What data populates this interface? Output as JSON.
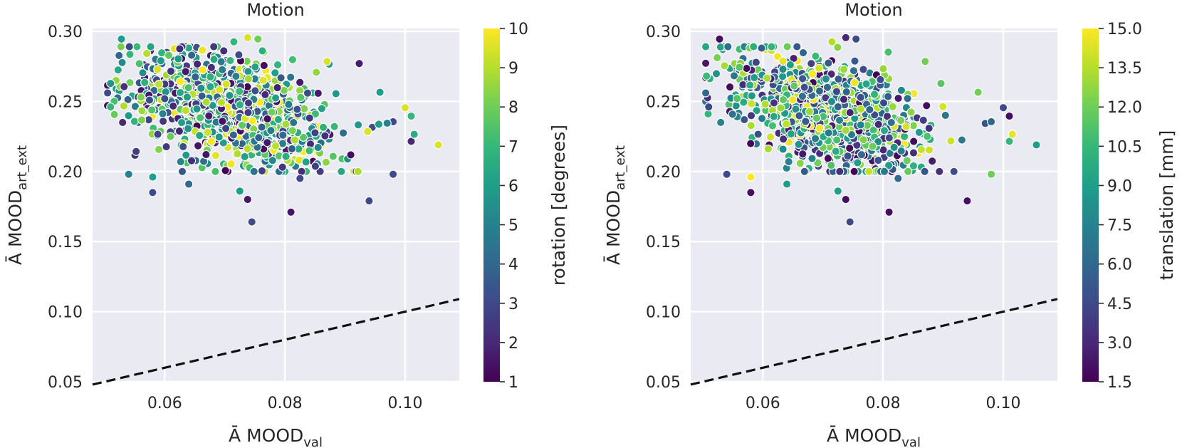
{
  "chart_data": [
    {
      "type": "scatter",
      "title": "Motion",
      "xlabel": {
        "prefix": "Ā MOOD",
        "subscript": "val"
      },
      "ylabel": {
        "prefix": "Ā MOOD",
        "subscript": "art_ext"
      },
      "xlim": [
        0.048,
        0.109
      ],
      "ylim": [
        0.05,
        0.302
      ],
      "xticks": [
        "0.06",
        "0.08",
        "0.10"
      ],
      "yticks": [
        "0.05",
        "0.10",
        "0.15",
        "0.20",
        "0.25",
        "0.30"
      ],
      "grid": true,
      "reference_line": {
        "style": "dashed",
        "color": "#111111",
        "x": [
          0.048,
          0.109
        ],
        "y": [
          0.048,
          0.109
        ]
      },
      "colorbar": {
        "label": "rotation [degrees]",
        "range": [
          1,
          10
        ],
        "ticks": [
          "1",
          "2",
          "3",
          "4",
          "5",
          "6",
          "7",
          "8",
          "9",
          "10"
        ],
        "colormap": "viridis"
      },
      "point_count": 1000,
      "point_distribution": {
        "x_mean": 0.071,
        "x_sd": 0.008,
        "y_mean": 0.243,
        "y_sd": 0.022
      },
      "notable_points": [
        {
          "x": 0.0528,
          "y": 0.2945,
          "c": 6.0
        },
        {
          "x": 0.0755,
          "y": 0.2945,
          "c": 8.0
        },
        {
          "x": 0.0738,
          "y": 0.2955,
          "c": 9.5
        },
        {
          "x": 0.0715,
          "y": 0.2925,
          "c": 7.0
        },
        {
          "x": 0.0625,
          "y": 0.2875,
          "c": 2.0
        },
        {
          "x": 0.087,
          "y": 0.2785,
          "c": 9.5
        },
        {
          "x": 0.0958,
          "y": 0.2565,
          "c": 6.0
        },
        {
          "x": 0.1,
          "y": 0.2455,
          "c": 9.5
        },
        {
          "x": 0.101,
          "y": 0.2395,
          "c": 7.0
        },
        {
          "x": 0.098,
          "y": 0.2355,
          "c": 3.0
        },
        {
          "x": 0.097,
          "y": 0.2345,
          "c": 5.0
        },
        {
          "x": 0.101,
          "y": 0.2215,
          "c": 2.0
        },
        {
          "x": 0.1055,
          "y": 0.219,
          "c": 9.5
        },
        {
          "x": 0.1015,
          "y": 0.2265,
          "c": 6.5
        },
        {
          "x": 0.098,
          "y": 0.198,
          "c": 3.0
        },
        {
          "x": 0.094,
          "y": 0.179,
          "c": 3.0
        },
        {
          "x": 0.081,
          "y": 0.171,
          "c": 1.5
        },
        {
          "x": 0.0745,
          "y": 0.164,
          "c": 3.0
        },
        {
          "x": 0.0738,
          "y": 0.18,
          "c": 1.5
        },
        {
          "x": 0.0725,
          "y": 0.186,
          "c": 6.0
        },
        {
          "x": 0.058,
          "y": 0.185,
          "c": 3.0
        },
        {
          "x": 0.058,
          "y": 0.196,
          "c": 6.0
        },
        {
          "x": 0.054,
          "y": 0.198,
          "c": 5.0
        },
        {
          "x": 0.064,
          "y": 0.191,
          "c": 4.0
        },
        {
          "x": 0.0825,
          "y": 0.195,
          "c": 3.0
        },
        {
          "x": 0.0505,
          "y": 0.256,
          "c": 3.0
        },
        {
          "x": 0.051,
          "y": 0.246,
          "c": 7.0
        },
        {
          "x": 0.053,
          "y": 0.235,
          "c": 2.0
        }
      ]
    },
    {
      "type": "scatter",
      "title": "Motion",
      "xlabel": {
        "prefix": "Ā MOOD",
        "subscript": "val"
      },
      "ylabel": {
        "prefix": "Ā MOOD",
        "subscript": "art_ext"
      },
      "xlim": [
        0.048,
        0.109
      ],
      "ylim": [
        0.05,
        0.302
      ],
      "xticks": [
        "0.06",
        "0.08",
        "0.10"
      ],
      "yticks": [
        "0.05",
        "0.10",
        "0.15",
        "0.20",
        "0.25",
        "0.30"
      ],
      "grid": true,
      "reference_line": {
        "style": "dashed",
        "color": "#111111",
        "x": [
          0.048,
          0.109
        ],
        "y": [
          0.048,
          0.109
        ]
      },
      "colorbar": {
        "label": "translation [mm]",
        "range": [
          1.5,
          15.0
        ],
        "ticks": [
          "1.5",
          "3.0",
          "4.5",
          "6.0",
          "7.5",
          "9.0",
          "10.5",
          "12.0",
          "13.5",
          "15.0"
        ],
        "colormap": "viridis"
      },
      "point_count": 1000,
      "point_distribution": {
        "x_mean": 0.071,
        "x_sd": 0.008,
        "y_mean": 0.243,
        "y_sd": 0.022
      },
      "notable_points": [
        {
          "x": 0.0528,
          "y": 0.2945,
          "c": 2.0
        },
        {
          "x": 0.0755,
          "y": 0.2945,
          "c": 4.5
        },
        {
          "x": 0.0738,
          "y": 0.2955,
          "c": 3.0
        },
        {
          "x": 0.0715,
          "y": 0.2925,
          "c": 13.5
        },
        {
          "x": 0.087,
          "y": 0.2785,
          "c": 12.0
        },
        {
          "x": 0.0958,
          "y": 0.2565,
          "c": 12.0
        },
        {
          "x": 0.1,
          "y": 0.2455,
          "c": 4.5
        },
        {
          "x": 0.101,
          "y": 0.2395,
          "c": 2.0
        },
        {
          "x": 0.098,
          "y": 0.2355,
          "c": 6.0
        },
        {
          "x": 0.101,
          "y": 0.2215,
          "c": 10.5
        },
        {
          "x": 0.1055,
          "y": 0.219,
          "c": 9.0
        },
        {
          "x": 0.1015,
          "y": 0.2265,
          "c": 14.5
        },
        {
          "x": 0.098,
          "y": 0.198,
          "c": 12.0
        },
        {
          "x": 0.094,
          "y": 0.179,
          "c": 2.0
        },
        {
          "x": 0.081,
          "y": 0.171,
          "c": 2.0
        },
        {
          "x": 0.0745,
          "y": 0.164,
          "c": 4.5
        },
        {
          "x": 0.0738,
          "y": 0.18,
          "c": 2.0
        },
        {
          "x": 0.0725,
          "y": 0.186,
          "c": 9.0
        },
        {
          "x": 0.058,
          "y": 0.185,
          "c": 2.0
        },
        {
          "x": 0.058,
          "y": 0.196,
          "c": 15.0
        },
        {
          "x": 0.054,
          "y": 0.198,
          "c": 4.5
        },
        {
          "x": 0.064,
          "y": 0.191,
          "c": 9.0
        },
        {
          "x": 0.0825,
          "y": 0.195,
          "c": 6.0
        },
        {
          "x": 0.0505,
          "y": 0.256,
          "c": 6.0
        },
        {
          "x": 0.051,
          "y": 0.246,
          "c": 4.5
        },
        {
          "x": 0.053,
          "y": 0.235,
          "c": 7.5
        }
      ]
    }
  ]
}
